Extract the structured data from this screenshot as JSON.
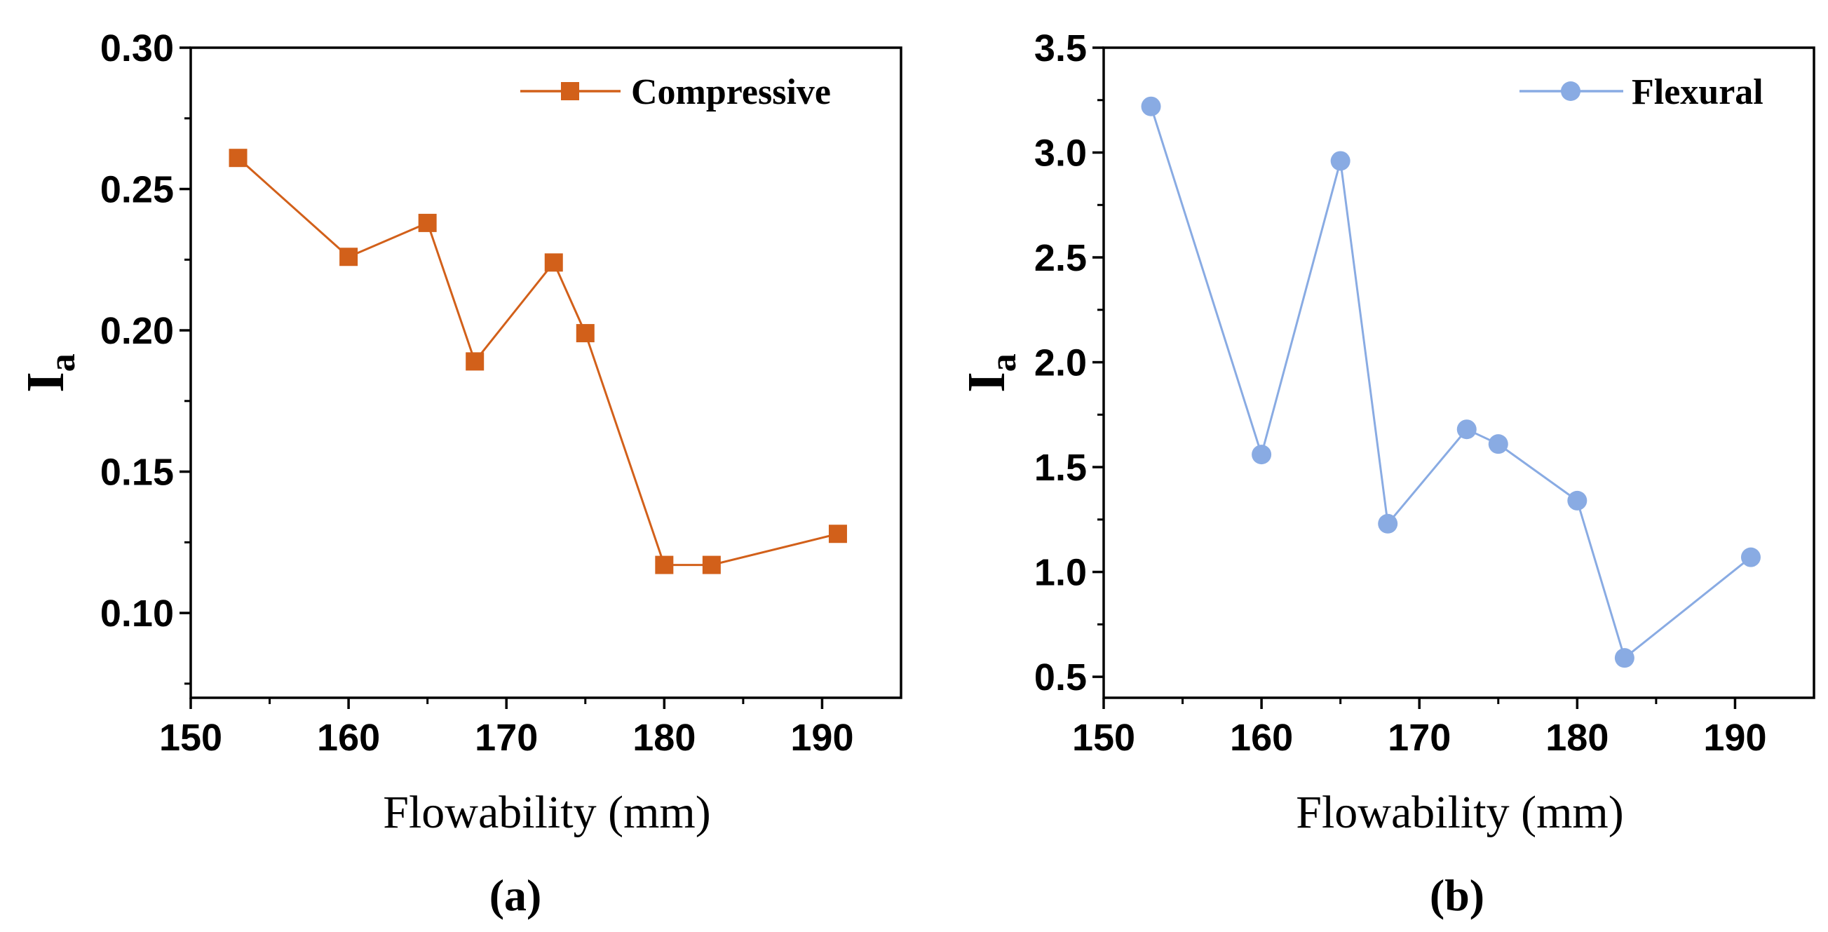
{
  "chart_data": [
    {
      "type": "line",
      "panel_label": "(a)",
      "title": "",
      "xlabel": "Flowability (mm)",
      "ylabel": "I",
      "ylabel_subscript": "a",
      "xlim": [
        150,
        195
      ],
      "ylim": [
        0.07,
        0.3
      ],
      "x_ticks": [
        150,
        160,
        170,
        180,
        190
      ],
      "x_tick_labels": [
        "150",
        "160",
        "170",
        "180",
        "190"
      ],
      "y_ticks": [
        0.1,
        0.15,
        0.2,
        0.25,
        0.3
      ],
      "y_tick_labels": [
        "0.10",
        "0.15",
        "0.20",
        "0.25",
        "0.30"
      ],
      "legend_position": "top-right",
      "grid": false,
      "series": [
        {
          "name": "Compressive",
          "color": "#d2601a",
          "marker": "square",
          "x": [
            153,
            160,
            165,
            168,
            173,
            175,
            180,
            183,
            191
          ],
          "y": [
            0.261,
            0.226,
            0.238,
            0.189,
            0.224,
            0.199,
            0.117,
            0.117,
            0.128
          ]
        }
      ]
    },
    {
      "type": "line",
      "panel_label": "(b)",
      "title": "",
      "xlabel": "Flowability (mm)",
      "ylabel": "I",
      "ylabel_subscript": "a",
      "xlim": [
        150,
        195
      ],
      "ylim": [
        0.4,
        3.5
      ],
      "x_ticks": [
        150,
        160,
        170,
        180,
        190
      ],
      "x_tick_labels": [
        "150",
        "160",
        "170",
        "180",
        "190"
      ],
      "y_ticks": [
        0.5,
        1.0,
        1.5,
        2.0,
        2.5,
        3.0,
        3.5
      ],
      "y_tick_labels": [
        "0.5",
        "1.0",
        "1.5",
        "2.0",
        "2.5",
        "3.0",
        "3.5"
      ],
      "legend_position": "top-right",
      "grid": false,
      "series": [
        {
          "name": "Flexural",
          "color": "#89abe3",
          "marker": "circle",
          "x": [
            153,
            160,
            165,
            168,
            173,
            175,
            180,
            183,
            191
          ],
          "y": [
            3.22,
            1.56,
            2.96,
            1.23,
            1.68,
            1.61,
            1.34,
            0.59,
            1.07
          ]
        }
      ]
    }
  ]
}
